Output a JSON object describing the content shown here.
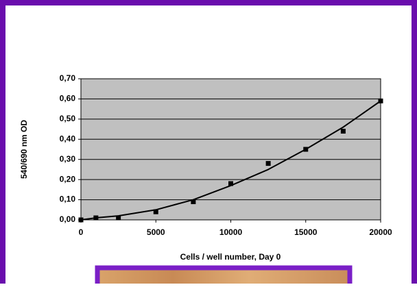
{
  "chart_data": {
    "type": "scatter",
    "ylabel": "540/690 nm OD",
    "xlabel": "Cells / well number, Day 0",
    "x": [
      0,
      1000,
      2500,
      5000,
      7500,
      10000,
      12500,
      15000,
      17500,
      20000
    ],
    "series": [
      {
        "color": "#000000",
        "marker": "square",
        "values": [
          0.0,
          0.01,
          0.01,
          0.04,
          0.09,
          0.18,
          0.28,
          0.35,
          0.44,
          0.59
        ]
      },
      {
        "color": "#000000",
        "style": "line",
        "values": [
          0.0,
          0.01,
          0.02,
          0.05,
          0.1,
          0.17,
          0.25,
          0.35,
          0.46,
          0.59
        ]
      }
    ],
    "xlim": [
      0,
      20000
    ],
    "xticks": [
      0,
      5000,
      10000,
      15000,
      20000
    ],
    "ylim": [
      0,
      0.7
    ],
    "yticks": [
      {
        "value": 0,
        "label": "0,00"
      },
      {
        "value": 0.1,
        "label": "0,10"
      },
      {
        "value": 0.2,
        "label": "0,20"
      },
      {
        "value": 0.3,
        "label": "0,30"
      },
      {
        "value": 0.4,
        "label": "0,40"
      },
      {
        "value": 0.5,
        "label": "0,50"
      },
      {
        "value": 0.6,
        "label": "0,60"
      },
      {
        "value": 0.7,
        "label": "0,70"
      }
    ],
    "grid": true,
    "plot_background": "#c0c0c0"
  }
}
